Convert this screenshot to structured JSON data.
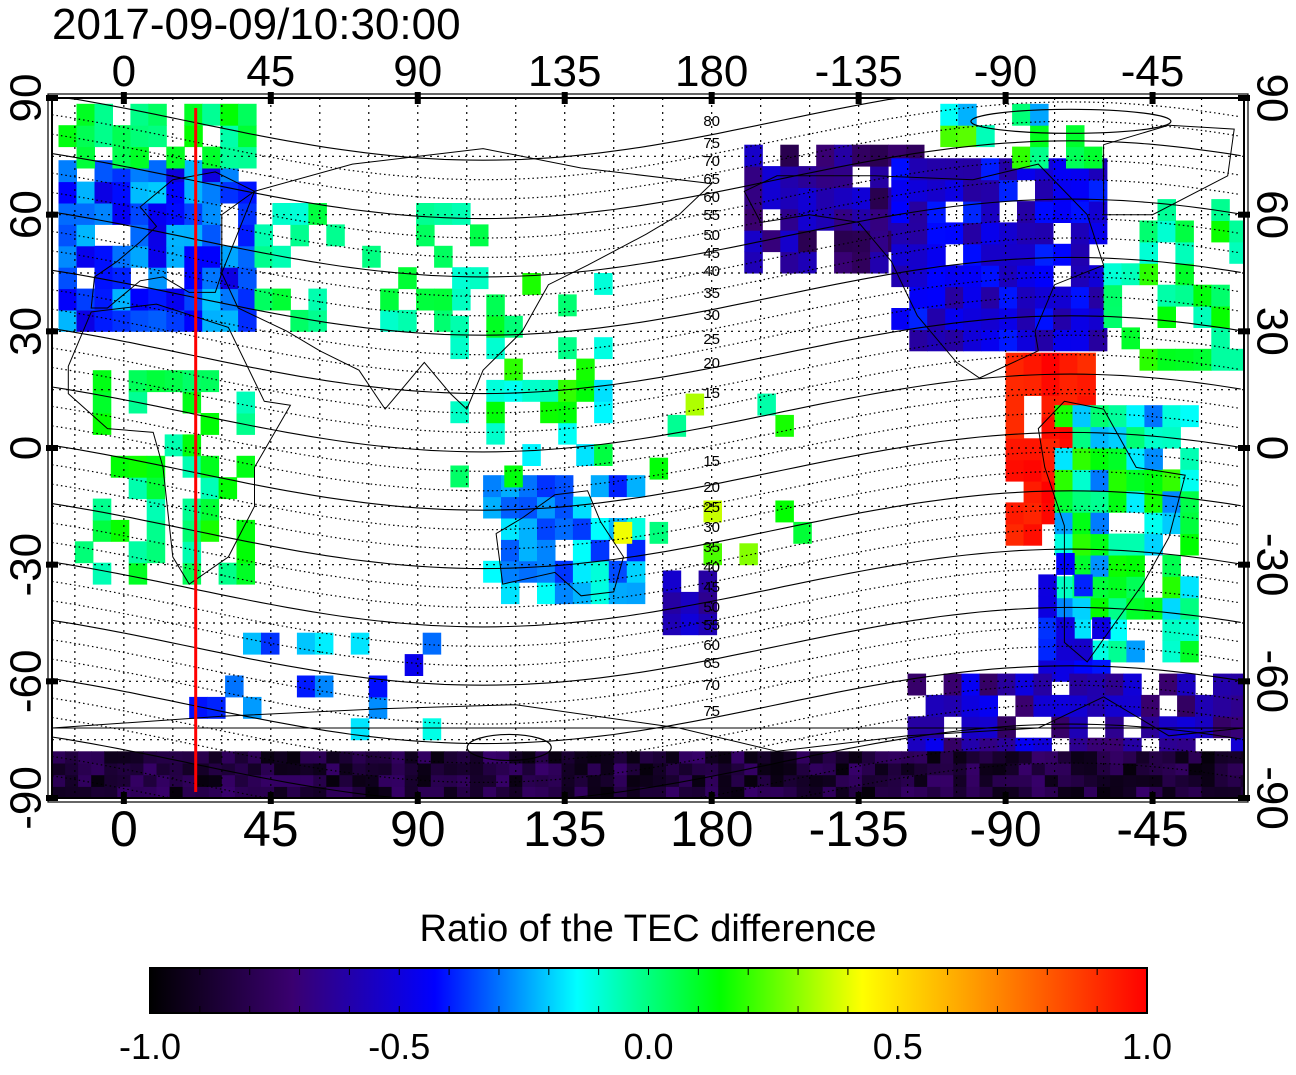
{
  "title": "2017-09-09/10:30:00",
  "map": {
    "lon_labels": [
      "0",
      "45",
      "90",
      "135",
      "180",
      "-135",
      "-90",
      "-45"
    ],
    "lon_values": [
      0,
      45,
      90,
      135,
      180,
      225,
      270,
      315
    ],
    "lat_labels": [
      "90",
      "60",
      "30",
      "0",
      "-30",
      "-60",
      "-90"
    ],
    "lat_values": [
      90,
      60,
      30,
      0,
      -30,
      -60,
      -90
    ],
    "lon_range": [
      -22,
      343
    ],
    "lat_range": [
      -90,
      90
    ],
    "contour_labels_north": [
      "80",
      "75",
      "70",
      "65",
      "60",
      "55",
      "50",
      "45",
      "40",
      "35",
      "30",
      "25",
      "20",
      "15"
    ],
    "contour_labels_south": [
      "15",
      "20",
      "25",
      "30",
      "35",
      "40",
      "45",
      "50",
      "55",
      "60",
      "65",
      "70",
      "75"
    ],
    "marker_line_lon": 22,
    "marker_line_color": "#ff0000"
  },
  "colorbar": {
    "title": "Ratio of the TEC difference",
    "tick_labels": [
      "-1.0",
      "-0.5",
      "0.0",
      "0.5",
      "1.0"
    ],
    "range": [
      -1.0,
      1.0
    ],
    "colors": [
      "#000000",
      "#3a0070",
      "#0000ff",
      "#00ffff",
      "#00ff00",
      "#ffff00",
      "#ff8000",
      "#ff0000"
    ]
  }
}
